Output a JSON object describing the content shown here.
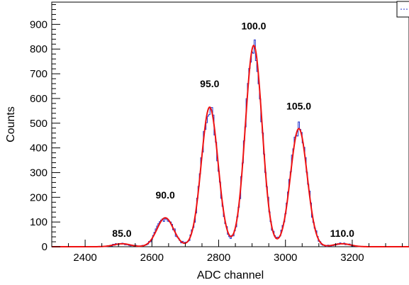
{
  "chart_data": {
    "type": "line",
    "title": "",
    "xlabel": "ADC channel",
    "ylabel": "Counts",
    "xlim": [
      2300,
      3370
    ],
    "ylim": [
      0,
      990
    ],
    "x_ticks": [
      2400,
      2600,
      2800,
      3000,
      3200
    ],
    "y_ticks": [
      0,
      100,
      200,
      300,
      400,
      500,
      600,
      700,
      800,
      900
    ],
    "grid": false,
    "legend": "top-right (partially visible)",
    "colors": {
      "histogram": "#2233cc",
      "fit": "#ee1111"
    },
    "peaks": [
      {
        "label": "85.0",
        "x": 2510,
        "height": 12,
        "label_y": 40
      },
      {
        "label": "90.0",
        "x": 2640,
        "height": 117,
        "label_y": 195
      },
      {
        "label": "95.0",
        "x": 2773,
        "height": 565,
        "label_y": 645
      },
      {
        "label": "100.0",
        "x": 2905,
        "height": 815,
        "label_y": 880
      },
      {
        "label": "105.0",
        "x": 3040,
        "height": 478,
        "label_y": 555
      },
      {
        "label": "110.0",
        "x": 3170,
        "height": 12,
        "label_y": 40
      }
    ],
    "peak_sigma": 25
  }
}
